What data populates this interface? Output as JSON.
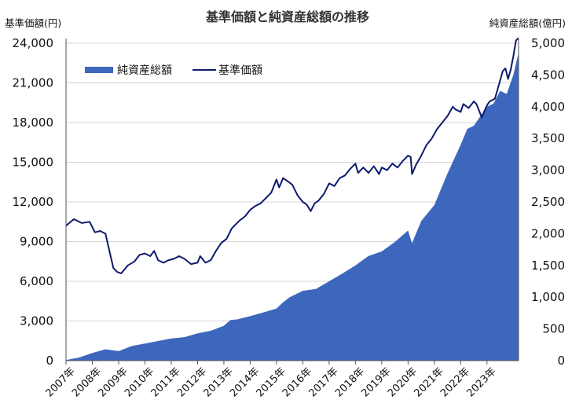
{
  "chart_data": {
    "type": "area",
    "title": "基準価額と純資産総額の推移",
    "ylabel_left": "基準価額(円)",
    "ylabel_right": "純資産総額(億円)",
    "ylim_left": [
      0,
      24000
    ],
    "ylim_right": [
      0,
      5000
    ],
    "yticks_left": [
      "0",
      "3,000",
      "6,000",
      "9,000",
      "12,000",
      "15,000",
      "18,000",
      "21,000",
      "24,000"
    ],
    "yticks_right": [
      "0",
      "500",
      "1,000",
      "1,500",
      "2,000",
      "2,500",
      "3,000",
      "3,500",
      "4,000",
      "4,500",
      "5,000"
    ],
    "x_start": 2007.0,
    "x_end": 2024.2,
    "x_categories": [
      "2007年",
      "2008年",
      "2009年",
      "2010年",
      "2011年",
      "2012年",
      "2013年",
      "2014年",
      "2015年",
      "2016年",
      "2017年",
      "2018年",
      "2019年",
      "2020年",
      "2021年",
      "2022年",
      "2023年"
    ],
    "series": [
      {
        "name": "純資産総額",
        "axis": "right",
        "type": "area",
        "color": "#3d67bd",
        "x": [
          2007.0,
          2007.5,
          2008.0,
          2008.5,
          2009.0,
          2009.5,
          2010.0,
          2010.5,
          2011.0,
          2011.5,
          2012.0,
          2012.5,
          2013.0,
          2013.25,
          2013.5,
          2014.0,
          2014.5,
          2015.0,
          2015.25,
          2015.5,
          2016.0,
          2016.5,
          2017.0,
          2017.5,
          2018.0,
          2018.5,
          2019.0,
          2019.5,
          2020.0,
          2020.15,
          2020.5,
          2021.0,
          2021.5,
          2022.0,
          2022.25,
          2022.5,
          2023.0,
          2023.25,
          2023.5,
          2023.75,
          2024.0,
          2024.2
        ],
        "values": [
          10,
          50,
          120,
          180,
          150,
          230,
          270,
          310,
          350,
          370,
          430,
          470,
          550,
          640,
          650,
          700,
          760,
          820,
          920,
          1000,
          1100,
          1130,
          1250,
          1370,
          1500,
          1650,
          1720,
          1870,
          2050,
          1850,
          2200,
          2450,
          2950,
          3400,
          3650,
          3700,
          4000,
          4050,
          4250,
          4200,
          4500,
          4850
        ]
      },
      {
        "name": "基準価額",
        "axis": "left",
        "type": "line",
        "color": "#0e1a6e",
        "x": [
          2007.0,
          2007.3,
          2007.6,
          2007.9,
          2008.1,
          2008.3,
          2008.5,
          2008.8,
          2008.95,
          2009.1,
          2009.35,
          2009.6,
          2009.8,
          2010.0,
          2010.2,
          2010.35,
          2010.5,
          2010.7,
          2010.9,
          2011.1,
          2011.3,
          2011.5,
          2011.75,
          2012.0,
          2012.1,
          2012.3,
          2012.5,
          2012.7,
          2012.9,
          2013.1,
          2013.3,
          2013.45,
          2013.6,
          2013.8,
          2014.0,
          2014.2,
          2014.4,
          2014.6,
          2014.8,
          2015.0,
          2015.1,
          2015.25,
          2015.4,
          2015.6,
          2015.8,
          2016.0,
          2016.15,
          2016.3,
          2016.45,
          2016.6,
          2016.8,
          2017.0,
          2017.2,
          2017.4,
          2017.6,
          2017.8,
          2018.0,
          2018.1,
          2018.3,
          2018.5,
          2018.7,
          2018.9,
          2019.0,
          2019.2,
          2019.4,
          2019.6,
          2019.8,
          2020.0,
          2020.1,
          2020.15,
          2020.3,
          2020.5,
          2020.7,
          2020.9,
          2021.1,
          2021.3,
          2021.5,
          2021.7,
          2021.8,
          2022.0,
          2022.1,
          2022.3,
          2022.5,
          2022.6,
          2022.8,
          2023.0,
          2023.1,
          2023.3,
          2023.5,
          2023.6,
          2023.7,
          2023.8,
          2023.9,
          2024.0,
          2024.1,
          2024.2
        ],
        "values": [
          10200,
          10700,
          10400,
          10500,
          9700,
          9800,
          9600,
          7000,
          6700,
          6600,
          7200,
          7500,
          8000,
          8100,
          7900,
          8300,
          7600,
          7400,
          7600,
          7700,
          7900,
          7700,
          7300,
          7400,
          7900,
          7400,
          7600,
          8300,
          8900,
          9200,
          10000,
          10300,
          10600,
          10900,
          11400,
          11700,
          11900,
          12300,
          12700,
          13700,
          13100,
          13800,
          13600,
          13300,
          12500,
          12000,
          11800,
          11300,
          11900,
          12100,
          12600,
          13400,
          13200,
          13800,
          14000,
          14500,
          14900,
          14200,
          14600,
          14200,
          14700,
          14100,
          14600,
          14400,
          14900,
          14600,
          15100,
          15500,
          15400,
          14100,
          14800,
          15500,
          16300,
          16800,
          17500,
          18000,
          18500,
          19200,
          19000,
          18800,
          19400,
          19100,
          19600,
          19400,
          18400,
          19300,
          19600,
          19800,
          21200,
          21900,
          22100,
          21300,
          22000,
          23000,
          24200,
          24400
        ]
      }
    ]
  }
}
